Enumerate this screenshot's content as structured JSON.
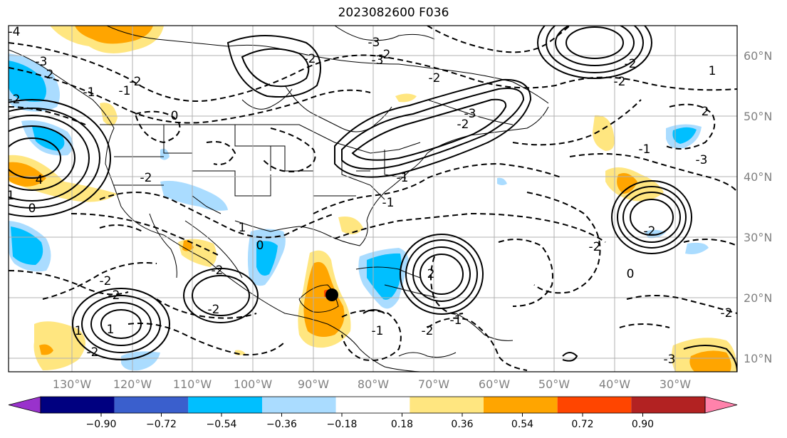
{
  "title": "2023082600 F036",
  "map": {
    "lat_labels": [
      "60°N",
      "50°N",
      "40°N",
      "30°N",
      "20°N",
      "10°N"
    ],
    "lon_labels": [
      "130°W",
      "120°W",
      "110°W",
      "100°W",
      "90°W",
      "80°W",
      "70°W",
      "60°W",
      "50°W",
      "40°W",
      "30°W"
    ],
    "contour_labels": [
      "-4",
      "-2",
      "-1",
      "0",
      "-1",
      "-3",
      "-2",
      "-1",
      "2",
      "-2",
      "-3",
      "-2",
      "-3",
      "-2",
      "-3",
      "-2",
      "4",
      "0",
      "-2",
      "1",
      "0",
      "-2",
      "-2",
      "-2",
      "-2",
      "1",
      "1",
      "-2",
      "1",
      "2",
      "-3",
      "-1",
      "-1",
      "2",
      "-1",
      "-2",
      "-1",
      "-2",
      "0",
      "-1",
      "-2",
      "-2",
      "-2",
      "-2",
      "-3"
    ],
    "marker": "storm-center",
    "colors": {
      "positive_low": "#ffe680",
      "positive_mid": "#ffa500",
      "negative_low": "#aadcff",
      "negative_mid": "#00bfff",
      "contour": "#000000",
      "grid": "#b0b0b0",
      "axis_label": "#808080"
    }
  },
  "colorbar": {
    "ticks": [
      "−0.90",
      "−0.72",
      "−0.54",
      "−0.36",
      "−0.18",
      "0.18",
      "0.36",
      "0.54",
      "0.72",
      "0.90"
    ],
    "bins": [
      {
        "color": "#9932cc"
      },
      {
        "color": "#000080"
      },
      {
        "color": "#3a5fcd"
      },
      {
        "color": "#00bfff"
      },
      {
        "color": "#aadcff"
      },
      {
        "color": "#ffffff"
      },
      {
        "color": "#ffe680"
      },
      {
        "color": "#ffa500"
      },
      {
        "color": "#ff4500"
      },
      {
        "color": "#b22222"
      },
      {
        "color": "#ff82ab"
      }
    ]
  }
}
